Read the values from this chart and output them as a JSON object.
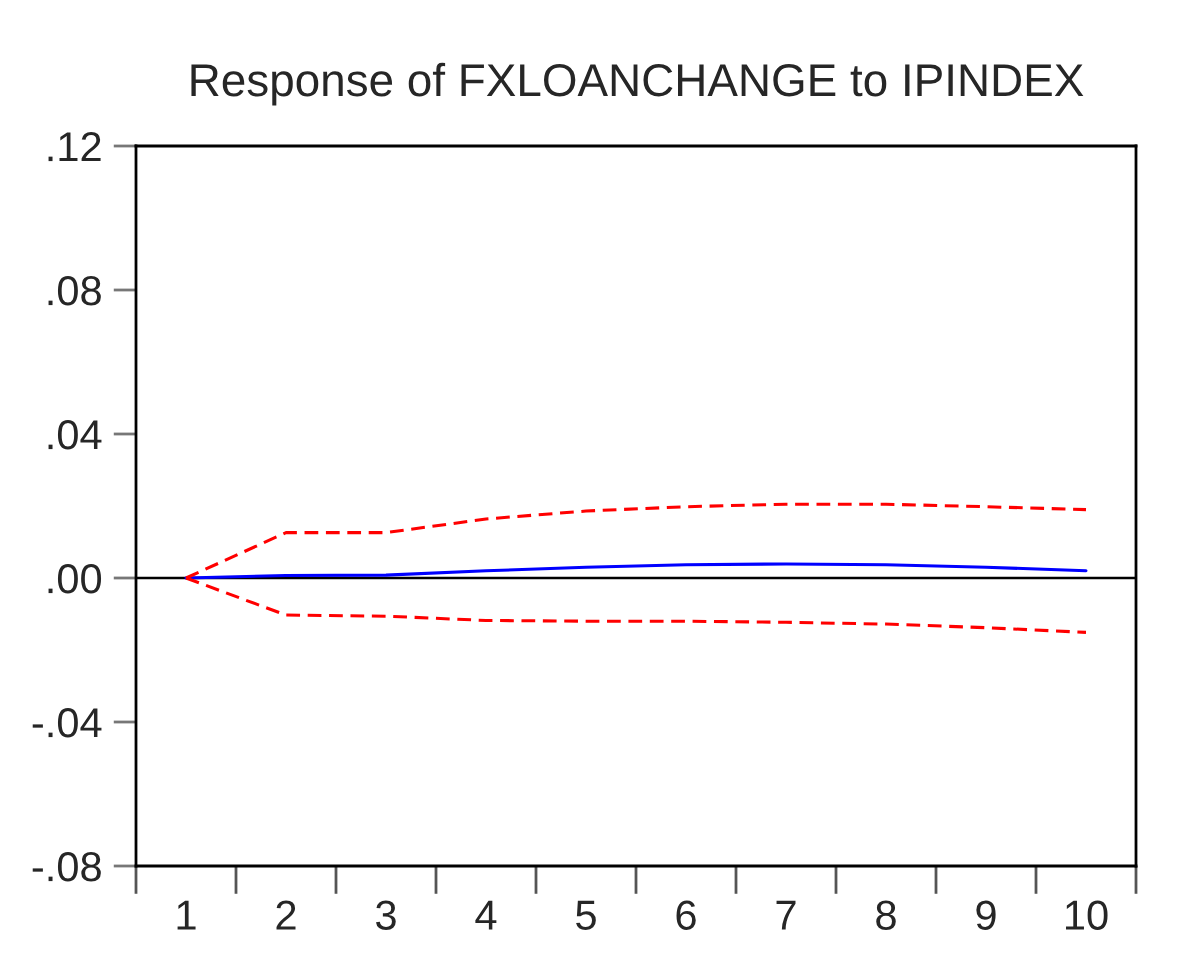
{
  "chart_data": {
    "type": "line",
    "title": "Response of FXLOANCHANGE to IPINDEX",
    "categories": [
      "1",
      "2",
      "3",
      "4",
      "5",
      "6",
      "7",
      "8",
      "9",
      "10"
    ],
    "series": [
      {
        "color": "#0000ff",
        "line_style": "solid",
        "values": [
          0.0,
          0.0007,
          0.0008,
          0.002,
          0.003,
          0.0037,
          0.0039,
          0.0037,
          0.003,
          0.002
        ]
      },
      {
        "color": "#ff0000",
        "line_style": "dashed",
        "values": [
          0.0,
          0.0126,
          0.0126,
          0.0164,
          0.0186,
          0.0198,
          0.0205,
          0.0205,
          0.0198,
          0.019
        ]
      },
      {
        "color": "#ff0000",
        "line_style": "dashed",
        "values": [
          0.0,
          -0.0103,
          -0.0106,
          -0.0118,
          -0.012,
          -0.012,
          -0.0123,
          -0.0128,
          -0.0138,
          -0.0151
        ]
      }
    ],
    "ylim": [
      -0.08,
      0.12
    ],
    "yticks": [
      {
        "value": -0.08,
        "label": "-.08"
      },
      {
        "value": -0.04,
        "label": "-.04"
      },
      {
        "value": 0.0,
        "label": ".00"
      },
      {
        "value": 0.04,
        "label": ".04"
      },
      {
        "value": 0.08,
        "label": ".08"
      },
      {
        "value": 0.12,
        "label": ".12"
      }
    ],
    "ref_lines": [
      {
        "axis": "y",
        "value": 0.0,
        "color": "#000000",
        "line_style": "solid"
      }
    ]
  }
}
